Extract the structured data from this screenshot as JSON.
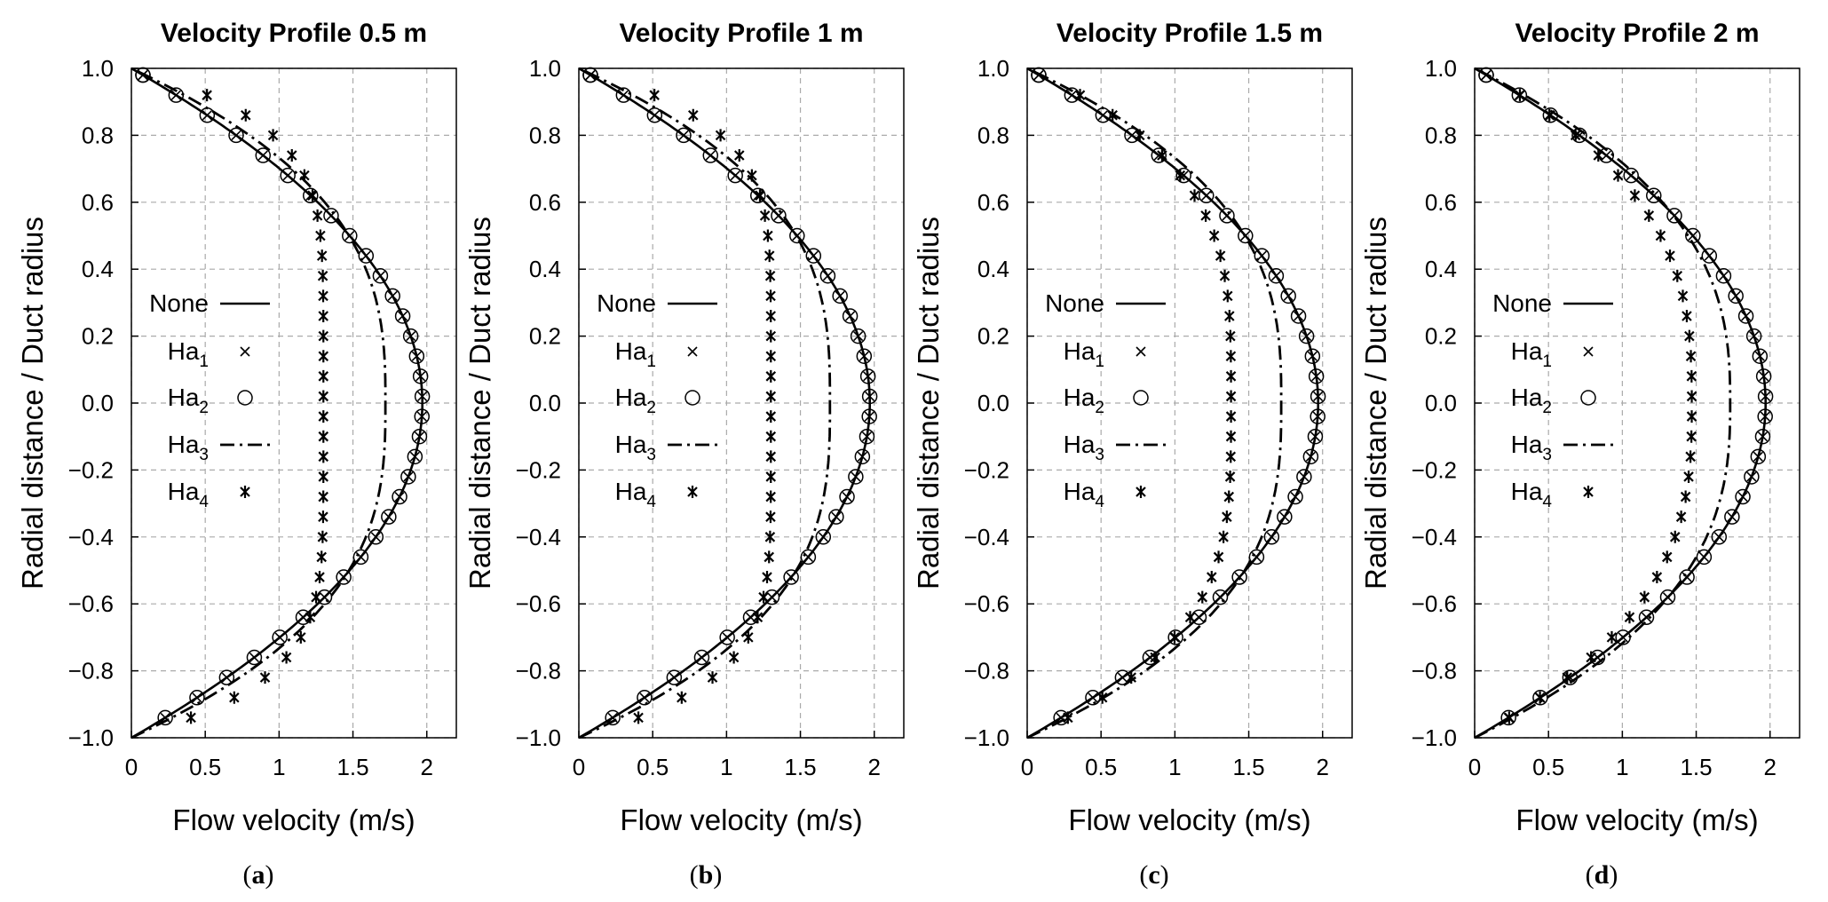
{
  "chart_data": [
    {
      "type": "line",
      "panel_label": "a",
      "title": "Velocity Profile 0.5 m",
      "xlabel": "Flow velocity (m/s)",
      "ylabel": "Radial distance / Duct radius",
      "xlim": [
        0,
        2.2
      ],
      "ylim": [
        -1.0,
        1.0
      ],
      "x_ticks": [
        "0",
        "0.5",
        "1",
        "1.5",
        "2"
      ],
      "y_ticks": [
        "1.0",
        "0.8",
        "0.6",
        "0.4",
        "0.2",
        "0.0",
        "−0.2",
        "−0.4",
        "−0.6",
        "−0.8",
        "−1.0"
      ],
      "grid": true,
      "legend_position": "center-left",
      "series": [
        {
          "name": "None",
          "label_base": "None",
          "label_sub": "",
          "style": "solid",
          "vmax": 1.97,
          "exponent": 2.0
        },
        {
          "name": "Ha1",
          "label_base": "Ha",
          "label_sub": "1",
          "style": "cross",
          "vmax": 1.97,
          "exponent": 2.0
        },
        {
          "name": "Ha2",
          "label_base": "Ha",
          "label_sub": "2",
          "style": "circle",
          "vmax": 1.97,
          "exponent": 2.0
        },
        {
          "name": "Ha3",
          "label_base": "Ha",
          "label_sub": "3",
          "style": "dashdot",
          "vmax": 1.72,
          "exponent": 2.8
        },
        {
          "name": "Ha4",
          "label_base": "Ha",
          "label_sub": "4",
          "style": "asterisk",
          "vmax": 1.3,
          "exponent": 6.0
        }
      ]
    },
    {
      "type": "line",
      "panel_label": "b",
      "title": "Velocity Profile 1 m",
      "xlabel": "Flow velocity (m/s)",
      "ylabel": "Radial distance / Duct radius",
      "xlim": [
        0,
        2.2
      ],
      "ylim": [
        -1.0,
        1.0
      ],
      "x_ticks": [
        "0",
        "0.5",
        "1",
        "1.5",
        "2"
      ],
      "y_ticks": [
        "1.0",
        "0.8",
        "0.6",
        "0.4",
        "0.2",
        "0.0",
        "−0.2",
        "−0.4",
        "−0.6",
        "−0.8",
        "−1.0"
      ],
      "grid": true,
      "legend_position": "center-left",
      "series": [
        {
          "name": "None",
          "label_base": "None",
          "label_sub": "",
          "style": "solid",
          "vmax": 1.97,
          "exponent": 2.0
        },
        {
          "name": "Ha1",
          "label_base": "Ha",
          "label_sub": "1",
          "style": "cross",
          "vmax": 1.97,
          "exponent": 2.0
        },
        {
          "name": "Ha2",
          "label_base": "Ha",
          "label_sub": "2",
          "style": "circle",
          "vmax": 1.97,
          "exponent": 2.0
        },
        {
          "name": "Ha3",
          "label_base": "Ha",
          "label_sub": "3",
          "style": "dashdot",
          "vmax": 1.7,
          "exponent": 2.9
        },
        {
          "name": "Ha4",
          "label_base": "Ha",
          "label_sub": "4",
          "style": "asterisk",
          "vmax": 1.3,
          "exponent": 6.0
        }
      ]
    },
    {
      "type": "line",
      "panel_label": "c",
      "title": "Velocity Profile 1.5 m",
      "xlabel": "Flow velocity (m/s)",
      "ylabel": "Radial distance / Duct radius",
      "xlim": [
        0,
        2.2
      ],
      "ylim": [
        -1.0,
        1.0
      ],
      "x_ticks": [
        "0",
        "0.5",
        "1",
        "1.5",
        "2"
      ],
      "y_ticks": [
        "1.0",
        "0.8",
        "0.6",
        "0.4",
        "0.2",
        "0.0",
        "−0.2",
        "−0.4",
        "−0.6",
        "−0.8",
        "−1.0"
      ],
      "grid": true,
      "legend_position": "center-left",
      "series": [
        {
          "name": "None",
          "label_base": "None",
          "label_sub": "",
          "style": "solid",
          "vmax": 1.97,
          "exponent": 2.0
        },
        {
          "name": "Ha1",
          "label_base": "Ha",
          "label_sub": "1",
          "style": "cross",
          "vmax": 1.97,
          "exponent": 2.0
        },
        {
          "name": "Ha2",
          "label_base": "Ha",
          "label_sub": "2",
          "style": "circle",
          "vmax": 1.97,
          "exponent": 2.0
        },
        {
          "name": "Ha3",
          "label_base": "Ha",
          "label_sub": "3",
          "style": "dashdot",
          "vmax": 1.72,
          "exponent": 2.8
        },
        {
          "name": "Ha4",
          "label_base": "Ha",
          "label_sub": "4",
          "style": "asterisk",
          "vmax": 1.38,
          "exponent": 3.6
        }
      ]
    },
    {
      "type": "line",
      "panel_label": "d",
      "title": "Velocity Profile 2 m",
      "xlabel": "Flow velocity (m/s)",
      "ylabel": "Radial distance / Duct radius",
      "xlim": [
        0,
        2.2
      ],
      "ylim": [
        -1.0,
        1.0
      ],
      "x_ticks": [
        "0",
        "0.5",
        "1",
        "1.5",
        "2"
      ],
      "y_ticks": [
        "1.0",
        "0.8",
        "0.6",
        "0.4",
        "0.2",
        "0.0",
        "−0.2",
        "−0.4",
        "−0.6",
        "−0.8",
        "−1.0"
      ],
      "grid": true,
      "legend_position": "center-left",
      "series": [
        {
          "name": "None",
          "label_base": "None",
          "label_sub": "",
          "style": "solid",
          "vmax": 1.97,
          "exponent": 2.0
        },
        {
          "name": "Ha1",
          "label_base": "Ha",
          "label_sub": "1",
          "style": "cross",
          "vmax": 1.97,
          "exponent": 2.0
        },
        {
          "name": "Ha2",
          "label_base": "Ha",
          "label_sub": "2",
          "style": "circle",
          "vmax": 1.97,
          "exponent": 2.0
        },
        {
          "name": "Ha3",
          "label_base": "Ha",
          "label_sub": "3",
          "style": "dashdot",
          "vmax": 1.73,
          "exponent": 2.6
        },
        {
          "name": "Ha4",
          "label_base": "Ha",
          "label_sub": "4",
          "style": "asterisk",
          "vmax": 1.47,
          "exponent": 2.8
        }
      ]
    }
  ]
}
